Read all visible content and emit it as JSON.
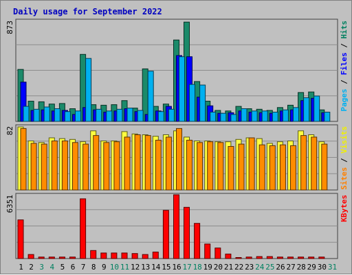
{
  "chart_data": {
    "type": "bar",
    "title": "Daily usage for September 2022",
    "categories": [
      "1",
      "2",
      "3",
      "4",
      "5",
      "6",
      "7",
      "8",
      "9",
      "10",
      "11",
      "12",
      "13",
      "14",
      "15",
      "16",
      "17",
      "18",
      "19",
      "20",
      "21",
      "22",
      "23",
      "24",
      "25",
      "26",
      "27",
      "28",
      "29",
      "30",
      "31"
    ],
    "weekend_days": [
      "3",
      "4",
      "10",
      "11",
      "17",
      "18",
      "24",
      "25",
      "31"
    ],
    "panels": [
      {
        "id": "hits",
        "max_label": "873",
        "ymax": 873,
        "side_label": [
          {
            "text": "Pages",
            "color": "#00b0f0"
          },
          {
            "text": " / ",
            "color": "#000000"
          },
          {
            "text": "Files",
            "color": "#0000ff"
          },
          {
            "text": " / ",
            "color": "#000000"
          },
          {
            "text": "Hits",
            "color": "#008060"
          }
        ],
        "series": [
          {
            "name": "Hits",
            "color": "#1b8a6a",
            "values": [
              450,
              175,
              170,
              150,
              155,
              110,
              580,
              145,
              140,
              145,
              180,
              115,
              455,
              130,
              150,
              705,
              860,
              345,
              175,
              95,
              90,
              130,
              110,
              105,
              95,
              120,
              140,
              250,
              255,
              100,
              null
            ]
          },
          {
            "name": "Files",
            "color": "#0000ff",
            "values": [
              340,
              95,
              100,
              90,
              95,
              60,
              120,
              100,
              80,
              90,
              110,
              85,
              60,
              90,
              130,
              570,
              560,
              210,
              135,
              70,
              75,
              90,
              80,
              75,
              70,
              90,
              100,
              180,
              200,
              75,
              null
            ]
          },
          {
            "name": "Pages",
            "color": "#00b0f0",
            "values": [
              130,
              105,
              125,
              110,
              85,
              90,
              545,
              105,
              90,
              105,
              115,
              95,
              435,
              85,
              105,
              560,
              320,
              315,
              80,
              70,
              60,
              110,
              90,
              90,
              80,
              100,
              120,
              205,
              220,
              80,
              null
            ]
          }
        ]
      },
      {
        "id": "visits",
        "max_label": "82",
        "ymax": 82,
        "side_label": [
          {
            "text": "Sites",
            "color": "#ff8000"
          },
          {
            "text": " / ",
            "color": "#000000"
          },
          {
            "text": "Visits",
            "color": "#f0f000"
          }
        ],
        "series": [
          {
            "name": "Visits",
            "color": "#ffff40",
            "values": [
              81,
              63,
              61,
              67,
              66,
              65,
              62,
              76,
              63,
              63,
              75,
              72,
              71,
              69,
              71,
              76,
              68,
              63,
              63,
              62,
              62,
              65,
              67,
              66,
              60,
              62,
              63,
              76,
              71,
              62,
              null
            ]
          },
          {
            "name": "Sites",
            "color": "#ff8c00",
            "values": [
              79,
              60,
              59,
              63,
              63,
              61,
              59,
              70,
              61,
              62,
              68,
              71,
              70,
              64,
              68,
              79,
              64,
              61,
              62,
              61,
              56,
              59,
              67,
              58,
              57,
              58,
              57,
              70,
              68,
              59,
              null
            ]
          }
        ]
      },
      {
        "id": "kbytes",
        "max_label": "6351",
        "ymax": 6351,
        "side_label": [
          {
            "text": "KBytes",
            "color": "#ff0000"
          }
        ],
        "series": [
          {
            "name": "KBytes",
            "color": "#ff0000",
            "values": [
              3850,
              400,
              150,
              150,
              150,
              150,
              5950,
              800,
              550,
              550,
              550,
              500,
              400,
              650,
              4800,
              6351,
              5100,
              3500,
              1450,
              1050,
              450,
              100,
              150,
              200,
              200,
              150,
              150,
              150,
              150,
              150,
              null
            ]
          }
        ]
      }
    ]
  }
}
